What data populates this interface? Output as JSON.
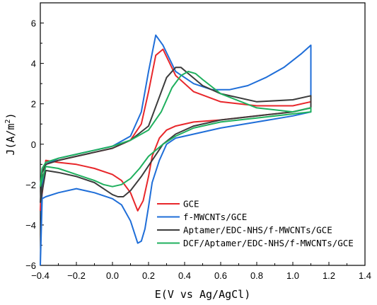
{
  "chart_data": {
    "type": "line",
    "xlabel": "E(V vs Ag/AgCl)",
    "ylabel_base": "J(A/m",
    "ylabel_sup": "2",
    "ylabel_close": ")",
    "xlim": [
      -0.4,
      1.4
    ],
    "ylim": [
      -6,
      7
    ],
    "xticks": [
      -0.4,
      -0.2,
      0.0,
      0.2,
      0.4,
      0.6,
      0.8,
      1.0,
      1.2,
      1.4
    ],
    "yticks": [
      -6,
      -4,
      -2,
      0,
      2,
      4,
      6
    ],
    "legend_position": "lower-right",
    "series": [
      {
        "name": "GCE",
        "color": "#e8272b",
        "x": [
          -0.4,
          -0.39,
          -0.37,
          -0.3,
          -0.2,
          -0.1,
          0.0,
          0.1,
          0.16,
          0.2,
          0.24,
          0.28,
          0.35,
          0.45,
          0.6,
          0.8,
          1.0,
          1.1,
          1.1,
          1.0,
          0.8,
          0.6,
          0.45,
          0.35,
          0.3,
          0.26,
          0.22,
          0.2,
          0.17,
          0.14,
          0.1,
          0.05,
          0.0,
          -0.1,
          -0.2,
          -0.3,
          -0.37,
          -0.4
        ],
        "y": [
          -3.3,
          -1.4,
          -1.0,
          -0.8,
          -0.6,
          -0.4,
          -0.2,
          0.2,
          1.0,
          2.6,
          4.4,
          4.7,
          3.4,
          2.6,
          2.1,
          1.9,
          1.9,
          2.1,
          1.8,
          1.6,
          1.4,
          1.2,
          1.1,
          0.9,
          0.7,
          0.3,
          -0.6,
          -1.6,
          -2.8,
          -3.3,
          -2.4,
          -1.8,
          -1.5,
          -1.2,
          -1.0,
          -0.9,
          -0.8,
          -3.3
        ]
      },
      {
        "name": "f-MWCNTs/GCE",
        "color": "#1f6ed8",
        "x": [
          -0.4,
          -0.39,
          -0.37,
          -0.3,
          -0.2,
          -0.1,
          0.0,
          0.1,
          0.16,
          0.2,
          0.24,
          0.28,
          0.35,
          0.45,
          0.55,
          0.65,
          0.75,
          0.85,
          0.95,
          1.05,
          1.1,
          1.1,
          1.0,
          0.8,
          0.6,
          0.45,
          0.35,
          0.3,
          0.26,
          0.22,
          0.2,
          0.18,
          0.16,
          0.14,
          0.1,
          0.05,
          0.0,
          -0.1,
          -0.2,
          -0.3,
          -0.37,
          -0.39,
          -0.4
        ],
        "y": [
          -6.0,
          -2.0,
          -1.0,
          -0.7,
          -0.5,
          -0.3,
          -0.1,
          0.4,
          1.6,
          3.6,
          5.4,
          4.9,
          3.6,
          3.0,
          2.7,
          2.7,
          2.9,
          3.3,
          3.8,
          4.5,
          4.9,
          1.6,
          1.4,
          1.1,
          0.8,
          0.5,
          0.3,
          0.0,
          -0.8,
          -1.9,
          -3.1,
          -4.2,
          -4.8,
          -4.9,
          -3.8,
          -3.0,
          -2.7,
          -2.4,
          -2.2,
          -2.4,
          -2.6,
          -2.7,
          -6.0
        ]
      },
      {
        "name": "Aptamer/EDC-NHS/f-MWCNTs/GCE",
        "color": "#3c3c3c",
        "x": [
          -0.4,
          -0.39,
          -0.37,
          -0.3,
          -0.2,
          -0.1,
          0.0,
          0.1,
          0.2,
          0.25,
          0.3,
          0.35,
          0.38,
          0.42,
          0.5,
          0.6,
          0.8,
          1.0,
          1.1,
          1.1,
          1.0,
          0.8,
          0.6,
          0.45,
          0.35,
          0.28,
          0.22,
          0.16,
          0.1,
          0.06,
          0.03,
          0.0,
          -0.05,
          -0.1,
          -0.2,
          -0.3,
          -0.37,
          -0.4
        ],
        "y": [
          -2.9,
          -1.4,
          -1.0,
          -0.8,
          -0.6,
          -0.4,
          -0.2,
          0.2,
          0.9,
          2.1,
          3.3,
          3.8,
          3.8,
          3.5,
          2.9,
          2.5,
          2.1,
          2.2,
          2.4,
          1.8,
          1.6,
          1.4,
          1.2,
          0.9,
          0.5,
          0.0,
          -0.8,
          -1.6,
          -2.3,
          -2.6,
          -2.6,
          -2.5,
          -2.2,
          -1.9,
          -1.6,
          -1.4,
          -1.3,
          -2.9
        ]
      },
      {
        "name": "DCF/Aptamer/EDC-NHS/f-MWCNTs/GCE",
        "color": "#1fb05e",
        "x": [
          -0.4,
          -0.39,
          -0.37,
          -0.3,
          -0.2,
          -0.1,
          0.0,
          0.1,
          0.2,
          0.27,
          0.33,
          0.38,
          0.42,
          0.46,
          0.5,
          0.6,
          0.8,
          1.0,
          1.1,
          1.1,
          1.0,
          0.8,
          0.6,
          0.45,
          0.35,
          0.28,
          0.2,
          0.15,
          0.1,
          0.05,
          0.0,
          -0.05,
          -0.1,
          -0.2,
          -0.3,
          -0.37,
          -0.4
        ],
        "y": [
          -2.1,
          -1.2,
          -0.9,
          -0.7,
          -0.5,
          -0.3,
          -0.1,
          0.2,
          0.7,
          1.6,
          2.8,
          3.4,
          3.6,
          3.5,
          3.2,
          2.5,
          1.8,
          1.6,
          1.8,
          1.6,
          1.5,
          1.3,
          1.1,
          0.8,
          0.4,
          0.0,
          -0.6,
          -1.2,
          -1.7,
          -2.0,
          -2.1,
          -2.0,
          -1.8,
          -1.5,
          -1.2,
          -1.1,
          -2.1
        ]
      }
    ]
  }
}
